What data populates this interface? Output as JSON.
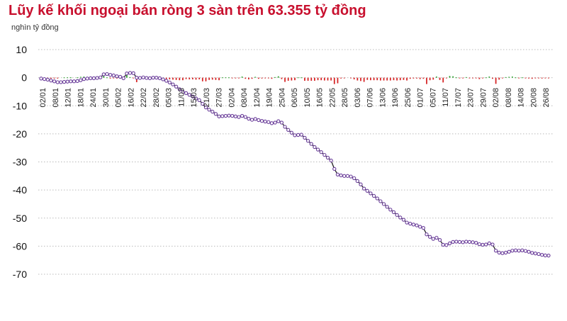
{
  "chart_data": {
    "type": "line",
    "title": "Lũy kế khối ngoại bán ròng 3 sàn trên 63.355 tỷ đồng",
    "ylabel": "nghìn tỷ đồng",
    "ylim": [
      -70,
      10
    ],
    "yticks": [
      10,
      0,
      -10,
      -20,
      -30,
      -40,
      -50,
      -60,
      -70
    ],
    "grid": "horizontal dotted",
    "colors": {
      "line": "#6a3d9a",
      "marker": "#6a3d9a",
      "line_dark": "#222222",
      "bar_neg": "#d62728",
      "bar_pos": "#2ca02c",
      "title": "#c8102e",
      "grid": "#bbbbbb"
    },
    "xlabels": [
      "02/01",
      "08/01",
      "12/01",
      "18/01",
      "24/01",
      "30/01",
      "05/02",
      "16/02",
      "22/02",
      "28/02",
      "05/03",
      "11/03",
      "15/03",
      "21/03",
      "27/03",
      "02/04",
      "08/04",
      "12/04",
      "19/04",
      "25/04",
      "06/05",
      "10/05",
      "16/05",
      "22/05",
      "28/05",
      "03/06",
      "07/06",
      "13/06",
      "19/06",
      "25/06",
      "01/07",
      "05/07",
      "11/07",
      "17/07",
      "23/07",
      "29/07",
      "02/08",
      "08/08",
      "14/08",
      "20/08",
      "26/08"
    ],
    "series": [
      {
        "values": [
          -0.3,
          -0.5,
          -0.7,
          -1.0,
          -1.3,
          -1.6,
          -1.6,
          -1.5,
          -1.4,
          -1.3,
          -1.3,
          -1.2,
          -0.9,
          -0.5,
          -0.3,
          -0.2,
          -0.2,
          -0.1,
          0.1,
          1.2,
          1.3,
          1.0,
          0.8,
          0.5,
          0.3,
          -0.2,
          1.5,
          1.7,
          1.6,
          0.0,
          -0.1,
          0.1,
          -0.1,
          -0.2,
          0.0,
          0.0,
          -0.2,
          -0.6,
          -1.1,
          -1.7,
          -2.4,
          -3.2,
          -4.1,
          -5.0,
          -5.5,
          -6.1,
          -6.7,
          -7.4,
          -8.0,
          -9.3,
          -10.6,
          -11.4,
          -12.1,
          -12.9,
          -13.8,
          -13.7,
          -13.6,
          -13.5,
          -13.6,
          -13.8,
          -14.0,
          -13.6,
          -14.0,
          -14.6,
          -15.0,
          -14.7,
          -15.1,
          -15.4,
          -15.6,
          -15.8,
          -16.2,
          -16.0,
          -15.5,
          -16.0,
          -17.5,
          -18.6,
          -19.6,
          -20.5,
          -20.4,
          -20.3,
          -21.4,
          -22.5,
          -23.6,
          -24.7,
          -25.6,
          -26.5,
          -27.5,
          -28.5,
          -29.5,
          -32.5,
          -34.5,
          -34.8,
          -35.0,
          -35.0,
          -35.2,
          -35.8,
          -36.8,
          -38.0,
          -39.5,
          -40.3,
          -41.2,
          -42.1,
          -43.0,
          -44.0,
          -45.0,
          -46.0,
          -47.0,
          -47.9,
          -48.9,
          -49.8,
          -50.6,
          -51.6,
          -52.0,
          -52.3,
          -52.6,
          -53.1,
          -53.5,
          -55.8,
          -56.7,
          -57.4,
          -57.0,
          -57.8,
          -59.5,
          -59.6,
          -59.0,
          -58.5,
          -58.4,
          -58.5,
          -58.6,
          -58.4,
          -58.5,
          -58.6,
          -58.8,
          -59.3,
          -59.5,
          -59.4,
          -59.0,
          -59.4,
          -61.6,
          -62.3,
          -62.5,
          -62.3,
          -62.0,
          -61.6,
          -61.5,
          -61.6,
          -61.5,
          -61.7,
          -62.0,
          -62.4,
          -62.6,
          -62.8,
          -63.1,
          -63.3,
          -63.355
        ]
      }
    ]
  }
}
